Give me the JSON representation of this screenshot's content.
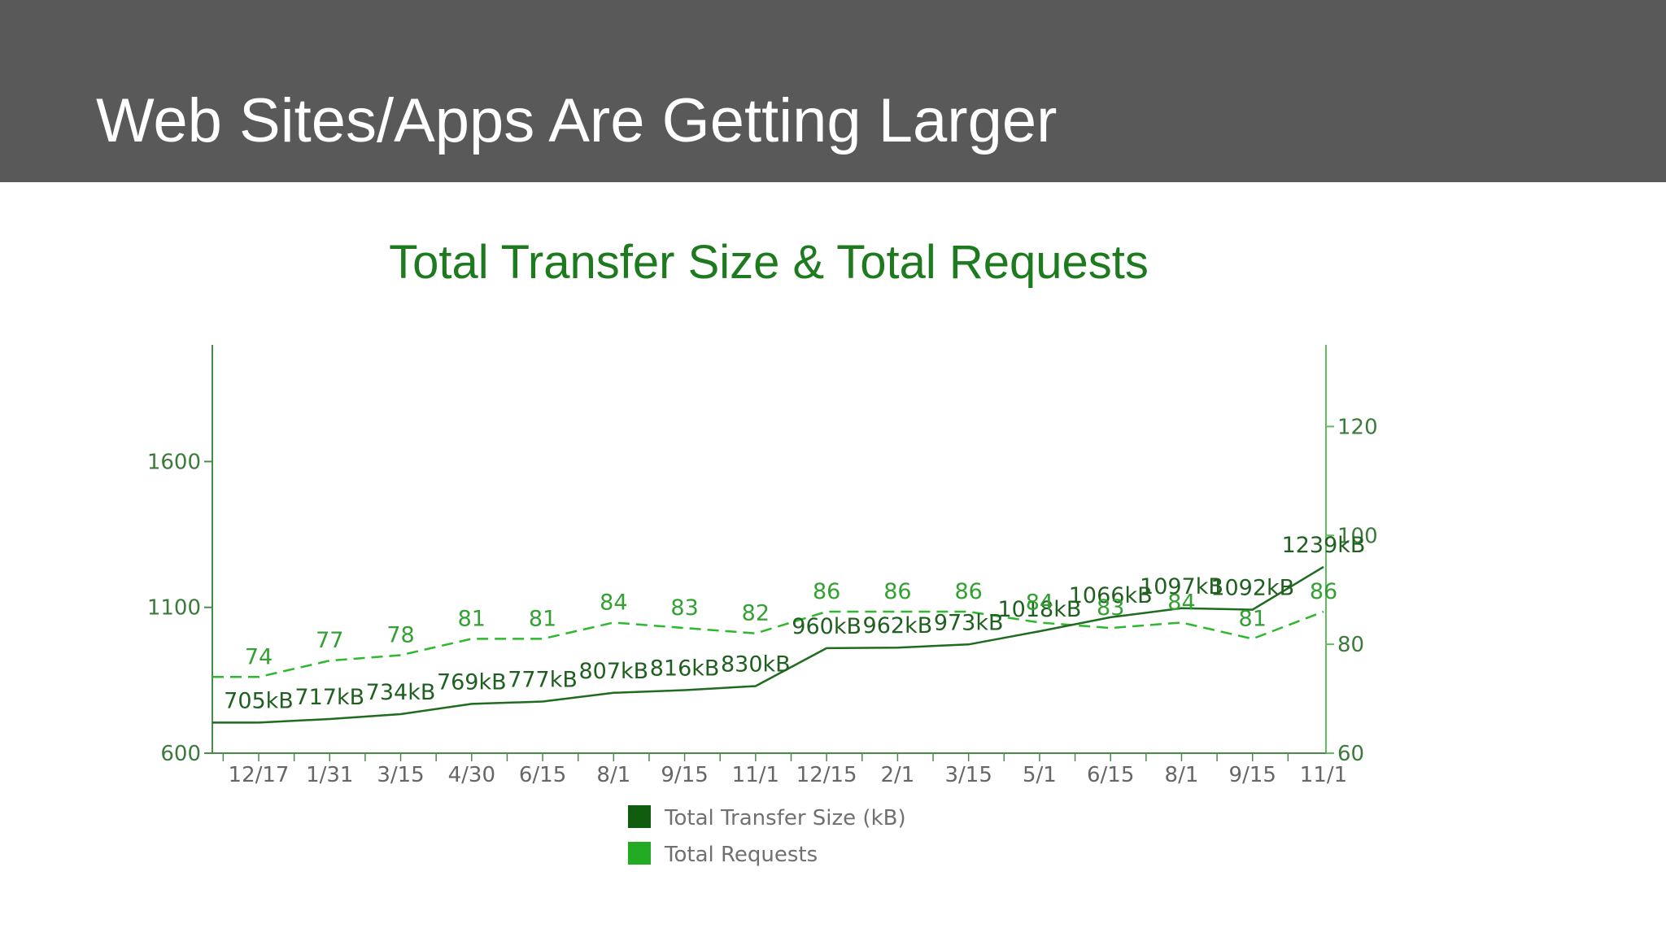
{
  "slide": {
    "title": "Web Sites/Apps Are Getting Larger"
  },
  "colors": {
    "header_bg": "#595959",
    "size_series": "#1f6b1f",
    "requests_series": "#2db82d",
    "legend_size": "#0f5c0f",
    "legend_requests": "#22aa22"
  },
  "chart_data": {
    "type": "line",
    "title": "Total Transfer Size & Total Requests",
    "x_ticks": [
      "12/17",
      "1/31",
      "3/15",
      "4/30",
      "6/15",
      "8/1",
      "9/15",
      "11/1",
      "12/15",
      "2/1",
      "3/15",
      "5/1",
      "6/15",
      "8/1",
      "9/15",
      "11/1"
    ],
    "y_left": {
      "ticks": [
        600,
        1100,
        1600
      ],
      "range": [
        600,
        2000
      ]
    },
    "y_right": {
      "ticks": [
        60,
        80,
        100,
        120
      ],
      "range": [
        60,
        135
      ]
    },
    "legend": [
      "Total Transfer Size (kB)",
      "Total Requests"
    ],
    "series": [
      {
        "name": "Total Transfer Size (kB)",
        "axis": "left",
        "line_style": "solid",
        "values": [
          705,
          717,
          734,
          769,
          777,
          807,
          816,
          830,
          960,
          962,
          973,
          1018,
          1066,
          1097,
          1092,
          1239
        ],
        "labels": [
          "705kB",
          "717kB",
          "734kB",
          "769kB",
          "777kB",
          "807kB",
          "816kB",
          "830kB",
          "960kB",
          "962kB",
          "973kB",
          "1018kB",
          "1066kB",
          "1097kB",
          "1092kB",
          "1239kB"
        ]
      },
      {
        "name": "Total Requests",
        "axis": "right",
        "line_style": "dashed",
        "values": [
          74,
          77,
          78,
          81,
          81,
          84,
          83,
          82,
          86,
          86,
          86,
          84,
          83,
          84,
          81,
          86
        ],
        "labels": [
          "74",
          "77",
          "78",
          "81",
          "81",
          "84",
          "83",
          "82",
          "86",
          "86",
          "86",
          "84",
          "83",
          "84",
          "81",
          "86"
        ]
      }
    ]
  }
}
